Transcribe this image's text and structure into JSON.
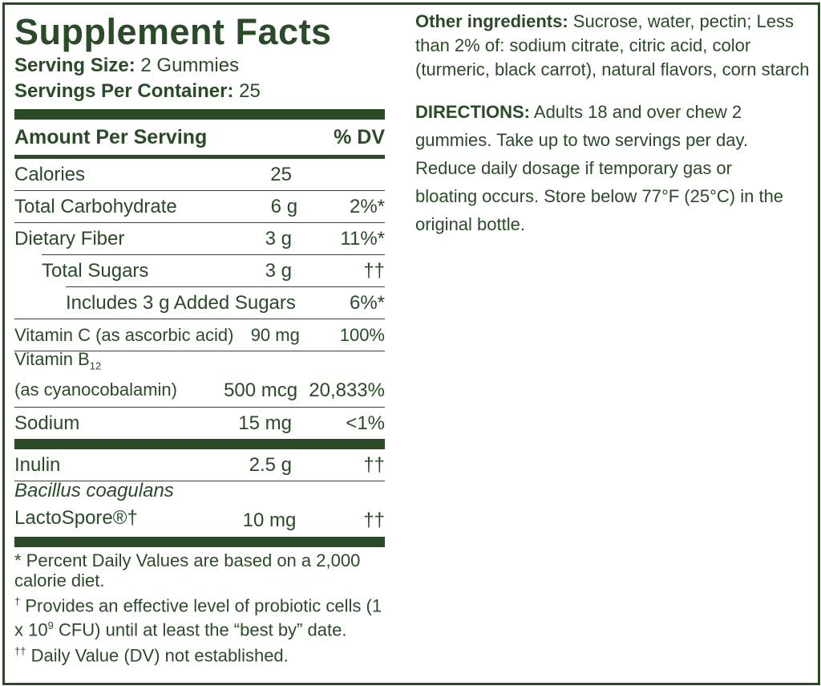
{
  "panel": {
    "title": "Supplement Facts",
    "serving_size": {
      "label": "Serving Size:",
      "value": "2 Gummies"
    },
    "servings_per_container": {
      "label": "Servings Per Container:",
      "value": "25"
    },
    "header": {
      "amount": "Amount Per Serving",
      "dv": "% DV"
    },
    "rows": [
      {
        "name": "Calories",
        "amount": "25"
      },
      {
        "name": "Total Carbohydrate",
        "amount": "6 g",
        "dv": "2%*"
      },
      {
        "name": "Dietary Fiber",
        "amount": "3 g",
        "dv": "11%*"
      },
      {
        "name": "Total Sugars",
        "amount": "3 g",
        "dv": "††"
      },
      {
        "name": "Includes 3 g Added Sugars",
        "dv": "6%*"
      },
      {
        "name": "Vitamin C (as ascorbic acid)",
        "amount": "90 mg",
        "dv": "100%"
      },
      {
        "name": "Vitamin B",
        "subscript": "12",
        "detail": "(as cyanocobalamin)",
        "amount": "500 mcg",
        "dv": "20,833%"
      },
      {
        "name": "Sodium",
        "amount": "15 mg",
        "dv": "<1%"
      },
      {
        "name": "Inulin",
        "amount": "2.5 g",
        "dv": "††"
      },
      {
        "name": "Bacillus coagulans",
        "detail": "LactoSpore®†",
        "amount": "10 mg",
        "dv": "††"
      }
    ],
    "footnotes": [
      {
        "text": "* Percent Daily Values are based on a 2,000 calorie diet."
      },
      {
        "symbol": "†",
        "text": " Provides an effective level of probiotic cells (1 x 10",
        "superscript": "9",
        "text_end": " CFU) until at least the “best by” date."
      },
      {
        "symbol": "††",
        "text": " Daily Value (DV) not established."
      }
    ]
  },
  "other_ingredients": {
    "label": "Other ingredients:",
    "text": " Sucrose, water, pectin; Less than 2% of: sodium citrate, citric acid, color (turmeric, black carrot), natural flavors, corn starch"
  },
  "directions": {
    "label": "DIRECTIONS:",
    "text": " Adults 18 and over chew 2 gummies. Take up to two servings per day. Reduce daily dosage if temporary gas or bloating occurs. Store below 77°F (25°C) in the original bottle."
  }
}
